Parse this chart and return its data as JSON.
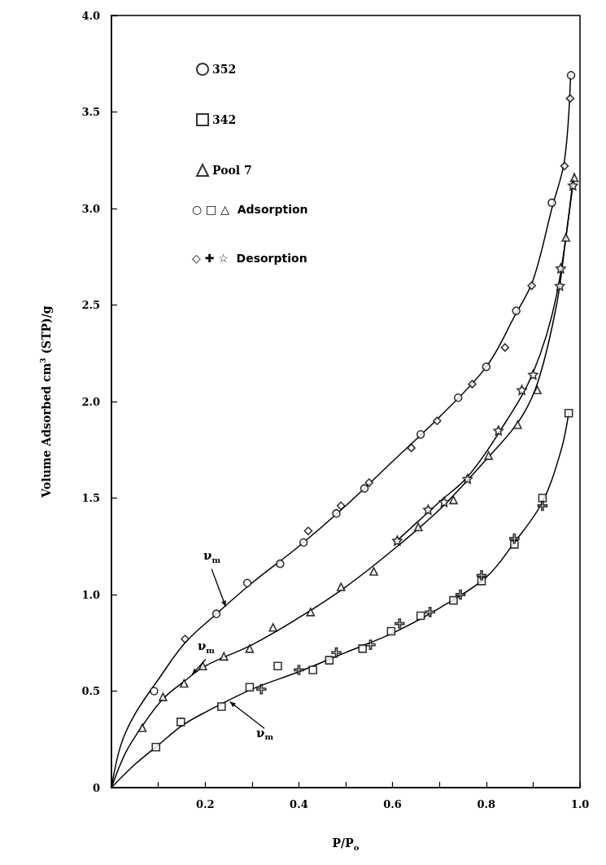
{
  "chart_data": {
    "type": "scatter",
    "xlabel": "P/P$_{o}$",
    "ylabel": "Volume Adsorbed cm$^{3}$ (STP)/g",
    "xlim": [
      0,
      1
    ],
    "ylim": [
      0,
      4
    ],
    "xticks": [
      {
        "value": 0.1,
        "label": null
      },
      0.2,
      {
        "value": 0.3,
        "label": null
      },
      0.4,
      {
        "value": 0.5,
        "label": null
      },
      0.6,
      {
        "value": 0.7,
        "label": null
      },
      0.8,
      {
        "value": 0.9,
        "label": null
      },
      {
        "value": 1,
        "label": "1.0"
      }
    ],
    "yticks": [
      0,
      0.5,
      {
        "value": 1,
        "label": "1.0"
      },
      1.5,
      {
        "value": 2,
        "label": "2.0"
      },
      2.5,
      {
        "value": 3,
        "label": "3.0"
      },
      3.5,
      {
        "value": 4,
        "label": "4.0"
      }
    ],
    "grid": false,
    "legend": "top left",
    "series": [
      {
        "name": "352",
        "marker": "circle",
        "color": "#000000",
        "x": [
          0.091,
          0.224,
          0.29,
          0.36,
          0.41,
          0.48,
          0.54,
          0.66,
          0.74,
          0.8,
          0.864,
          0.94,
          0.981
        ],
        "values": [
          0.5,
          0.9,
          1.06,
          1.16,
          1.27,
          1.42,
          1.55,
          1.83,
          2.02,
          2.18,
          2.47,
          3.03,
          3.69
        ]
      },
      {
        "name": "342",
        "marker": "square",
        "color": "#000000",
        "x": [
          0.095,
          0.148,
          0.235,
          0.295,
          0.355,
          0.43,
          0.465,
          0.536,
          0.597,
          0.66,
          0.73,
          0.79,
          0.86,
          0.92,
          0.976
        ],
        "values": [
          0.21,
          0.34,
          0.42,
          0.52,
          0.63,
          0.61,
          0.66,
          0.72,
          0.81,
          0.89,
          0.97,
          1.07,
          1.26,
          1.5,
          1.94
        ]
      },
      {
        "name": "Pool 7",
        "marker": "triangle",
        "color": "#000000",
        "x": [
          0.066,
          0.11,
          0.155,
          0.195,
          0.24,
          0.295,
          0.345,
          0.425,
          0.49,
          0.56,
          0.655,
          0.73,
          0.805,
          0.867,
          0.909,
          0.97,
          0.988
        ],
        "values": [
          0.31,
          0.47,
          0.54,
          0.63,
          0.68,
          0.72,
          0.83,
          0.91,
          1.04,
          1.12,
          1.35,
          1.49,
          1.72,
          1.88,
          2.06,
          2.85,
          3.16
        ]
      },
      {
        "marker": "diamond",
        "color": "#000000",
        "x": [
          0.157,
          0.42,
          0.49,
          0.55,
          0.64,
          0.695,
          0.77,
          0.84,
          0.897,
          0.967,
          0.979
        ],
        "values": [
          0.77,
          1.33,
          1.46,
          1.58,
          1.76,
          1.9,
          2.09,
          2.28,
          2.6,
          3.22,
          3.57
        ]
      },
      {
        "marker": "cross",
        "color": "#000000",
        "x": [
          0.32,
          0.4,
          0.48,
          0.553,
          0.615,
          0.68,
          0.745,
          0.79,
          0.86,
          0.92
        ],
        "values": [
          0.51,
          0.61,
          0.7,
          0.74,
          0.85,
          0.91,
          1.0,
          1.1,
          1.29,
          1.46
        ]
      },
      {
        "marker": "star",
        "color": "#000000",
        "x": [
          0.61,
          0.676,
          0.71,
          0.76,
          0.826,
          0.876,
          0.9,
          0.957,
          0.959,
          0.985
        ],
        "values": [
          1.28,
          1.44,
          1.48,
          1.6,
          1.85,
          2.06,
          2.14,
          2.6,
          2.69,
          3.12
        ]
      },
      {
        "type": "line",
        "marker": "none",
        "color": "#000000",
        "x": [
          0,
          0.02,
          0.05,
          0.1,
          0.157,
          0.224,
          0.3,
          0.4,
          0.5,
          0.6,
          0.7,
          0.8,
          0.86,
          0.9,
          0.94,
          0.967,
          0.98
        ],
        "values": [
          0,
          0.22,
          0.38,
          0.56,
          0.75,
          0.9,
          1.06,
          1.25,
          1.46,
          1.69,
          1.92,
          2.18,
          2.44,
          2.63,
          3.0,
          3.25,
          3.69
        ]
      },
      {
        "type": "line",
        "marker": "none",
        "color": "#000000",
        "x": [
          0,
          0.03,
          0.066,
          0.11,
          0.155,
          0.2,
          0.3,
          0.4,
          0.5,
          0.6,
          0.7,
          0.8,
          0.87,
          0.91,
          0.95,
          0.97,
          0.988
        ],
        "values": [
          0,
          0.18,
          0.32,
          0.46,
          0.55,
          0.63,
          0.74,
          0.88,
          1.04,
          1.23,
          1.44,
          1.7,
          1.9,
          2.1,
          2.5,
          2.85,
          3.18
        ]
      },
      {
        "type": "line",
        "marker": "none",
        "color": "#000000",
        "x": [
          0.61,
          0.7,
          0.76,
          0.83,
          0.9,
          0.95,
          0.985
        ],
        "values": [
          1.28,
          1.48,
          1.61,
          1.85,
          2.15,
          2.55,
          3.15
        ]
      },
      {
        "type": "line",
        "marker": "none",
        "color": "#000000",
        "x": [
          0,
          0.05,
          0.1,
          0.15,
          0.2,
          0.3,
          0.4,
          0.5,
          0.6,
          0.7,
          0.8,
          0.86,
          0.92,
          0.96,
          0.976
        ],
        "values": [
          0,
          0.12,
          0.22,
          0.32,
          0.39,
          0.51,
          0.6,
          0.7,
          0.8,
          0.93,
          1.09,
          1.27,
          1.48,
          1.75,
          1.94
        ]
      }
    ],
    "annotations": [
      "○ □ △  Adsorption",
      "◇ ✚ ☆  Desorption",
      {
        "text": "ν$_{m}$",
        "x": 0.245,
        "y": 0.93
      },
      {
        "text": "ν$_{m}$",
        "x": 0.17,
        "y": 0.58
      },
      {
        "text": "ν$_{m}$",
        "x": 0.25,
        "y": 0.45
      }
    ]
  }
}
